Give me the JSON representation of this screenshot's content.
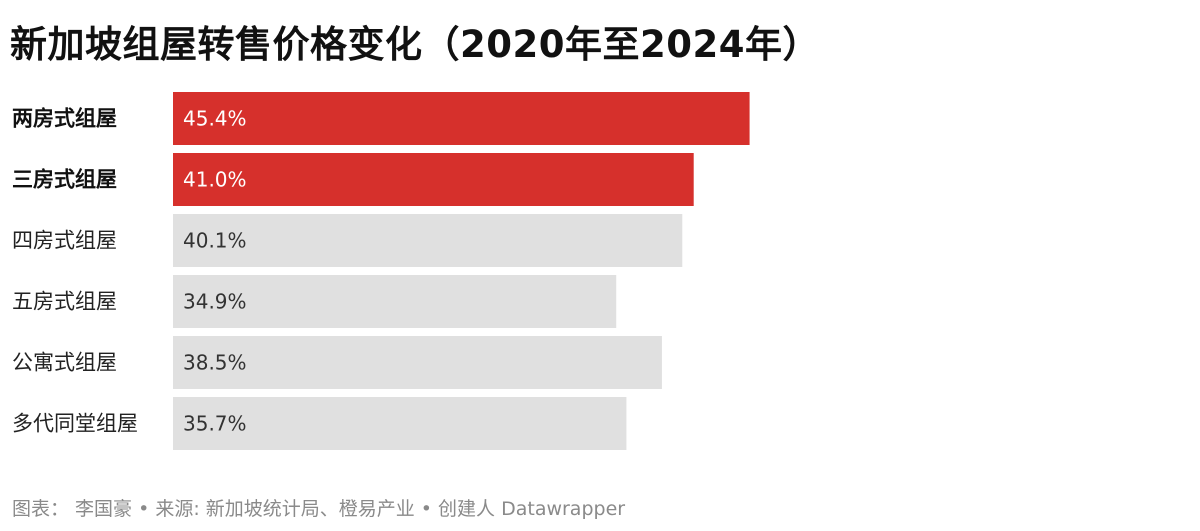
{
  "title": "新加坡组屋转售价格变化（2020年至2024年）",
  "footer": "图表： 李国豪 • 来源: 新加坡统计局、橙易产业 • 创建人 Datawrapper",
  "colors": {
    "highlight": "#d6302c",
    "base": "#e0e0e0",
    "highlight_text": "#ffffff",
    "base_text": "#333333"
  },
  "chart_data": {
    "type": "bar",
    "orientation": "horizontal",
    "title": "新加坡组屋转售价格变化（2020年至2024年）",
    "categories": [
      "两房式组屋",
      "三房式组屋",
      "四房式组屋",
      "五房式组屋",
      "公寓式组屋",
      "多代同堂组屋"
    ],
    "values": [
      45.4,
      41.0,
      40.1,
      34.9,
      38.5,
      35.7
    ],
    "value_labels": [
      "45.4%",
      "41.0%",
      "40.1%",
      "34.9%",
      "38.5%",
      "35.7%"
    ],
    "highlighted": [
      true,
      true,
      false,
      false,
      false,
      false
    ],
    "unit": "%",
    "xlim": [
      0,
      100
    ],
    "xlabel": "",
    "ylabel": "",
    "grid": false,
    "legend": "none"
  }
}
